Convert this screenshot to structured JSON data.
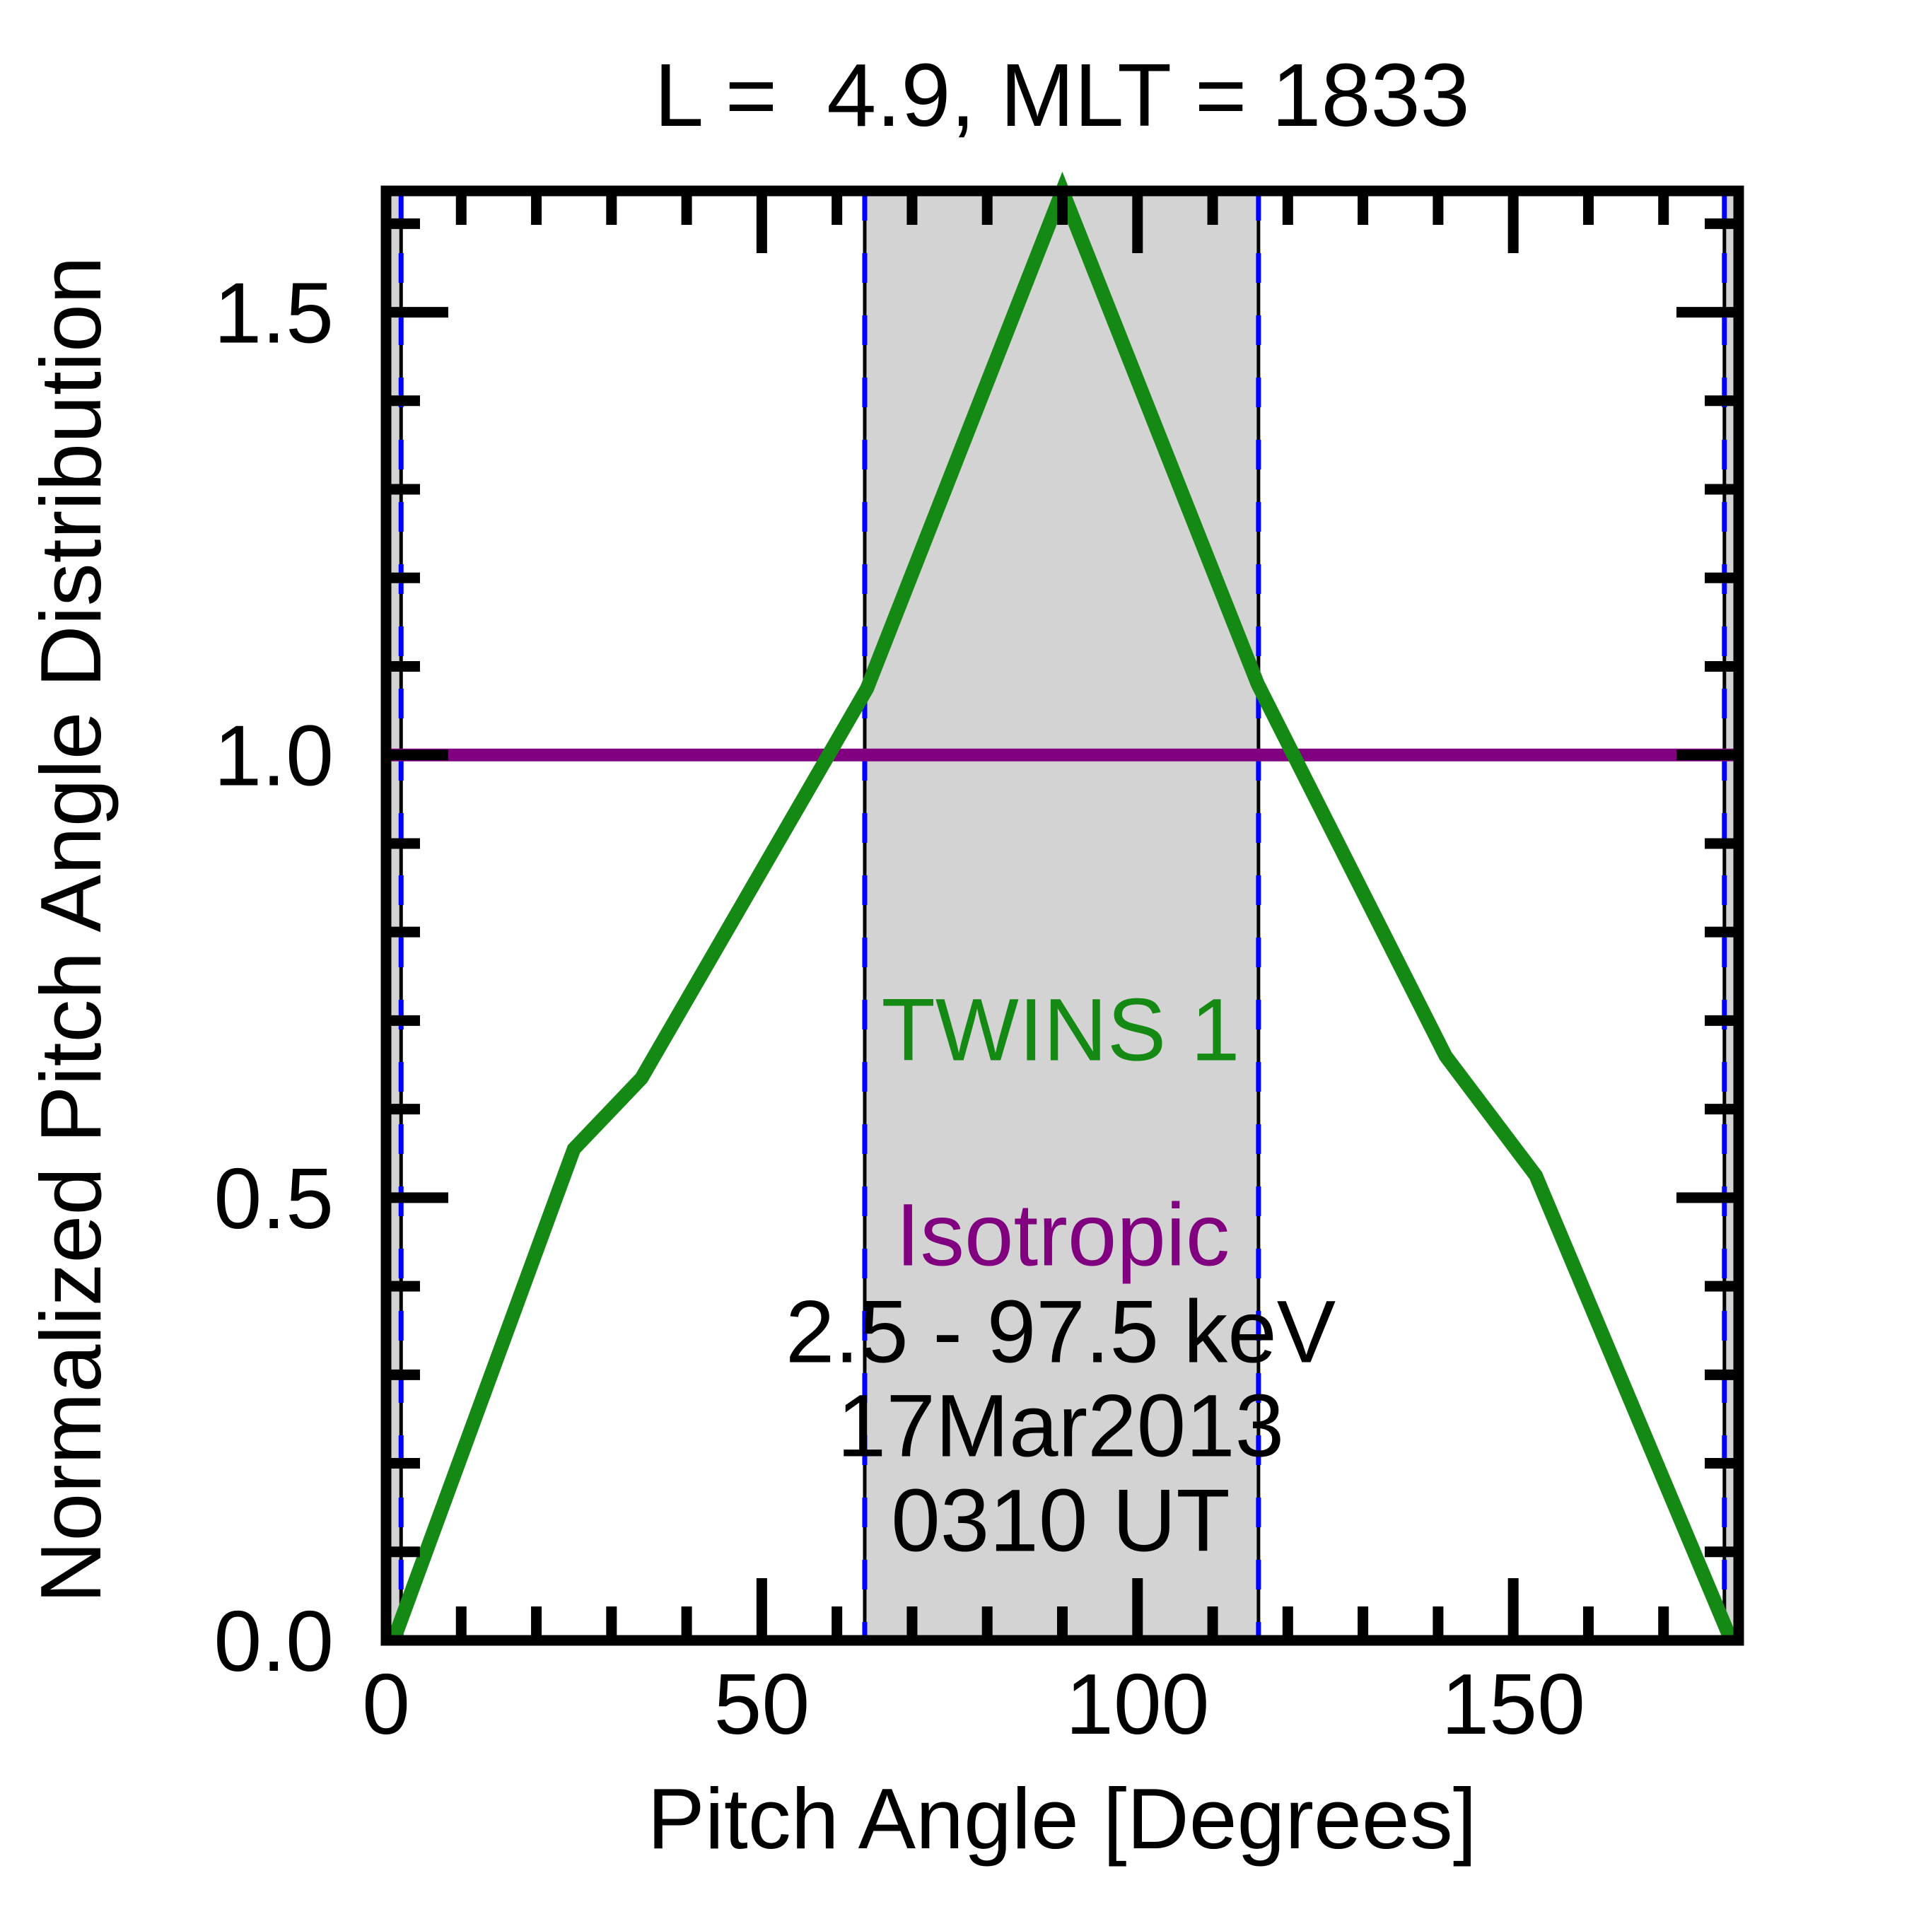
{
  "title": "L =  4.9, MLT = 1833",
  "annotations": {
    "twins1": {
      "text": "TWINS 1",
      "color": "#148a14"
    },
    "isotropic": {
      "text": "Isotropic",
      "color": "#800080"
    },
    "energy": {
      "text": "2.5 - 97.5 keV",
      "color": "#000000"
    },
    "date": {
      "text": "17Mar2013",
      "color": "#000000"
    },
    "time": {
      "text": "0310 UT",
      "color": "#000000"
    }
  },
  "colors": {
    "curve_green": "#148a14",
    "isotropic_purple": "#800080",
    "boundary_blue": "#0000ff",
    "boundary_black": "#000000",
    "shading_gray": "#d3d3d3",
    "axis_black": "#000000"
  },
  "chart_data": {
    "type": "line",
    "title": "L =  4.9, MLT = 1833",
    "xlabel": "Pitch Angle [Degrees]",
    "ylabel": "Normalized Pitch Angle Distribution",
    "xlim": [
      0,
      180
    ],
    "ylim": [
      0,
      1.637
    ],
    "grid": false,
    "legend_position": "center annotations inside plot",
    "x_ticks": [
      0,
      50,
      100,
      150
    ],
    "x_tick_labels": [
      "0",
      "50",
      "100",
      "150"
    ],
    "x_minor_step": 10,
    "y_ticks": [
      0.0,
      0.5,
      1.0,
      1.5
    ],
    "y_tick_labels": [
      "0.0",
      "0.5",
      "1.0",
      "1.5"
    ],
    "y_minor_step": 0.1,
    "series": [
      {
        "name": "TWINS 1",
        "color": "#148a14",
        "x": [
          1,
          25,
          34,
          64,
          90,
          116,
          141,
          153,
          179
        ],
        "y": [
          0.0,
          0.555,
          0.635,
          1.075,
          1.637,
          1.08,
          0.66,
          0.525,
          0.0
        ]
      },
      {
        "name": "Isotropic",
        "color": "#800080",
        "x": [
          0,
          180
        ],
        "y": [
          1.0,
          1.0
        ]
      }
    ],
    "shaded_regions_x": [
      [
        0,
        2.0
      ],
      [
        63.7,
        116.1
      ],
      [
        178.1,
        180
      ]
    ],
    "boundary_lines_x": [
      2.0,
      63.7,
      116.1,
      178.1
    ]
  }
}
